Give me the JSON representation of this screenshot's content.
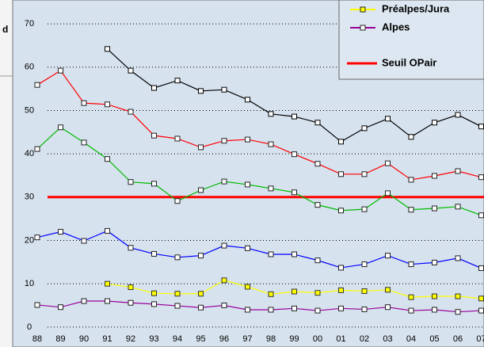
{
  "left_panel_text": "d",
  "chart_data": {
    "type": "line",
    "categories": [
      "88",
      "89",
      "90",
      "91",
      "92",
      "93",
      "94",
      "95",
      "96",
      "97",
      "98",
      "99",
      "00",
      "01",
      "02",
      "03",
      "04",
      "05",
      "06",
      "07"
    ],
    "series": [
      {
        "color": "#000000",
        "marker_face": "#ffffff",
        "values": [
          null,
          null,
          null,
          64.2,
          59.2,
          55.2,
          56.9,
          54.5,
          54.8,
          52.5,
          49.2,
          48.6,
          47.2,
          42.8,
          45.9,
          48.1,
          43.9,
          47.2,
          49.0,
          46.3
        ]
      },
      {
        "color": "#ff0000",
        "marker_face": "#ffffff",
        "values": [
          55.9,
          59.2,
          51.7,
          51.4,
          49.7,
          44.2,
          43.5,
          41.5,
          43.0,
          43.3,
          42.2,
          39.9,
          37.7,
          35.3,
          35.3,
          37.8,
          34.0,
          34.9,
          36.0,
          34.6
        ]
      },
      {
        "color": "#00bb00",
        "marker_face": "#ffffff",
        "values": [
          41.1,
          46.1,
          42.6,
          38.8,
          33.5,
          33.1,
          29.1,
          31.6,
          33.6,
          32.9,
          32.0,
          31.1,
          28.2,
          26.9,
          27.2,
          30.9,
          27.1,
          27.4,
          27.8,
          25.8
        ]
      },
      {
        "color": "#0000ff",
        "marker_face": "#ffffff",
        "values": [
          20.7,
          22.0,
          19.9,
          22.2,
          18.3,
          16.9,
          16.1,
          16.5,
          18.8,
          18.2,
          16.8,
          16.8,
          15.4,
          13.7,
          14.5,
          16.5,
          14.5,
          14.9,
          15.9,
          13.6
        ]
      },
      {
        "name": "Préalpes/Jura",
        "color": "#ffff00",
        "marker_face": "#ffff00",
        "values": [
          null,
          null,
          null,
          10.0,
          9.2,
          7.8,
          7.7,
          7.7,
          10.8,
          9.3,
          7.6,
          8.2,
          7.9,
          8.5,
          8.3,
          8.6,
          6.9,
          7.1,
          7.1,
          6.6
        ]
      },
      {
        "name": "Alpes",
        "color": "#990099",
        "marker_face": "#ffffff",
        "values": [
          5.1,
          4.6,
          6.0,
          6.0,
          5.6,
          5.3,
          4.9,
          4.5,
          5.0,
          4.0,
          4.0,
          4.3,
          3.8,
          4.3,
          4.1,
          4.6,
          3.8,
          4.0,
          3.5,
          3.8
        ]
      }
    ],
    "threshold": {
      "name": "Seuil OPair",
      "value": 30,
      "color": "#ff0000"
    },
    "ylim": [
      -4.6,
      75.5
    ],
    "yticks": [
      0,
      10,
      20,
      30,
      40,
      50,
      60,
      70
    ],
    "grid": true,
    "legend": "upper right"
  }
}
